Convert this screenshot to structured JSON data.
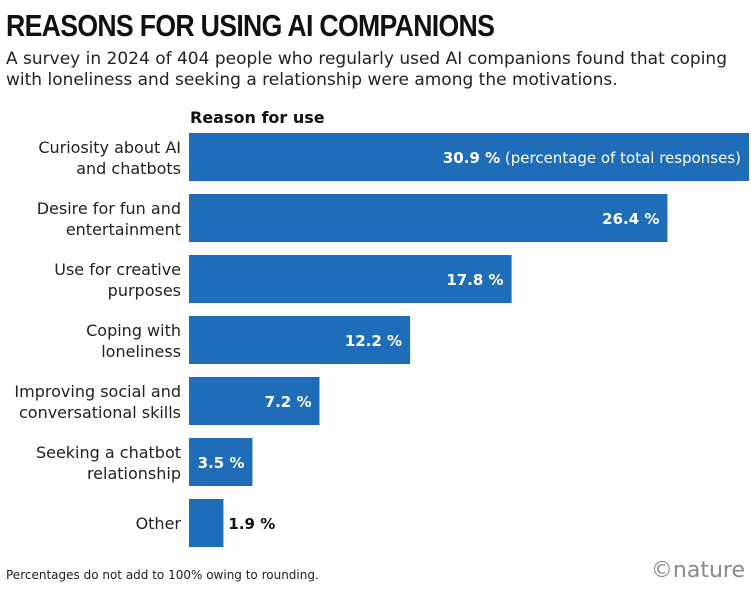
{
  "title": "REASONS FOR USING AI COMPANIONS",
  "subtitle": "A survey in 2024 of 404 people who regularly used AI companions found that coping with loneliness and seeking a relationship were among the motivations.",
  "footnote": "Percentages do not add to 100% owing to rounding.",
  "brand": "©nature",
  "colors": {
    "bar": "#1f6db8",
    "label_inside": "#ffffff",
    "label_outside": "#111111",
    "text": "#222222"
  },
  "chart_data": {
    "type": "bar",
    "orientation": "horizontal",
    "title": "REASONS FOR USING AI COMPANIONS",
    "ylabel": "Reason for use",
    "xlabel": "",
    "unit": "%",
    "first_label_note": "(percentage of total responses)",
    "categories": [
      [
        "Curiosity about AI",
        "and chatbots"
      ],
      [
        "Desire for fun and",
        "entertainment"
      ],
      [
        "Use for creative",
        "purposes"
      ],
      [
        "Coping with",
        "loneliness"
      ],
      [
        "Improving social and",
        "conversational skills"
      ],
      [
        "Seeking a chatbot",
        "relationship"
      ],
      [
        "Other"
      ]
    ],
    "values": [
      30.9,
      26.4,
      17.8,
      12.2,
      7.2,
      3.5,
      1.9
    ],
    "xlim": [
      0,
      30.9
    ]
  }
}
